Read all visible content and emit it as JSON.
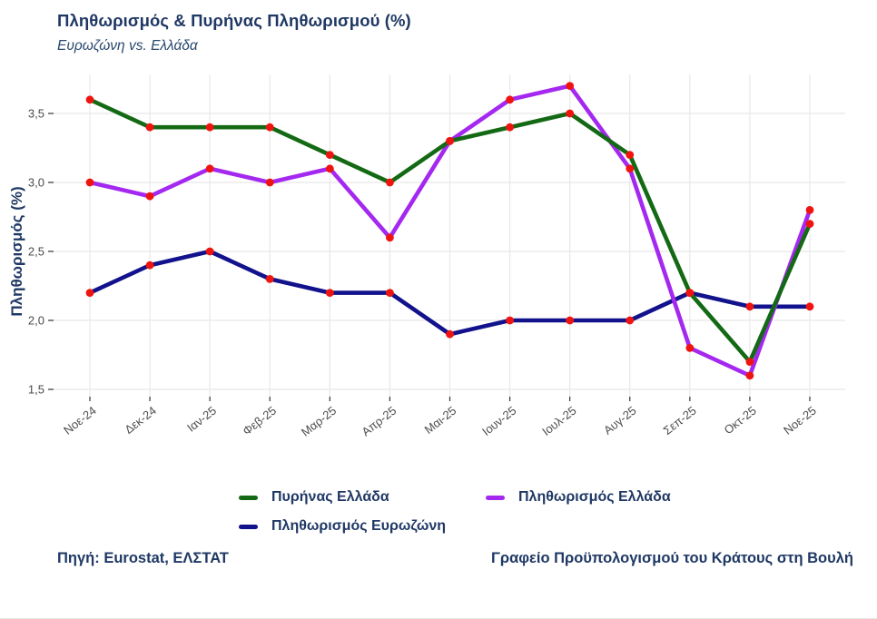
{
  "title": "Πληθωρισμός & Πυρήνας Πληθωρισμού (%)",
  "subtitle": "Ευρωζώνη vs. Ελλάδα",
  "footer": {
    "source": "Πηγή: Eurostat, ΕΛΣΤΑΤ",
    "attribution": "Γραφείο Προϋπολογισμού του Κράτους στη Βουλή"
  },
  "colors": {
    "title_navy": "#1f3864",
    "axis_text_gray": "#4d4d4d",
    "gridline": "#e8e8e8",
    "tick_mark": "#333333",
    "marker_red": "#ee1410"
  },
  "chart_data": {
    "type": "line",
    "title": "Πληθωρισμός & Πυρήνας Πληθωρισμού (%)",
    "subtitle": "Ευρωζώνη vs. Ελλάδα",
    "xlabel": "",
    "ylabel": "Πληθωρισμός (%)",
    "categories": [
      "Νοε-24",
      "Δεκ-24",
      "Ιαν-25",
      "Φεβ-25",
      "Μαρ-25",
      "Απρ-25",
      "Μαι-25",
      "Ιουν-25",
      "Ιουλ-25",
      "Αυγ-25",
      "Σεπ-25",
      "Οκτ-25",
      "Νοε-25"
    ],
    "series": [
      {
        "name": "Πυρήνας Ελλάδα",
        "color": "#146914",
        "values": [
          3.6,
          3.4,
          3.4,
          3.4,
          3.2,
          3.0,
          3.3,
          3.4,
          3.5,
          3.2,
          2.2,
          1.7,
          2.7
        ]
      },
      {
        "name": "Πληθωρισμός Ελλάδα",
        "color": "#a428f0",
        "values": [
          3.0,
          2.9,
          3.1,
          3.0,
          3.1,
          2.6,
          3.3,
          3.6,
          3.7,
          3.1,
          1.8,
          1.6,
          2.8
        ]
      },
      {
        "name": "Πληθωρισμός Ευρωζώνη",
        "color": "#12128c",
        "values": [
          2.2,
          2.4,
          2.5,
          2.3,
          2.2,
          2.2,
          1.9,
          2.0,
          2.0,
          2.0,
          2.2,
          2.1,
          2.1
        ]
      }
    ],
    "y_ticks": [
      "1,5",
      "2,0",
      "2,5",
      "3,0",
      "3,5"
    ],
    "y_tick_values": [
      1.5,
      2.0,
      2.5,
      3.0,
      3.5
    ],
    "ylim": [
      1.36,
      3.78
    ],
    "marker_color": "#ee1410",
    "grid": true,
    "legend_position": "bottom"
  }
}
